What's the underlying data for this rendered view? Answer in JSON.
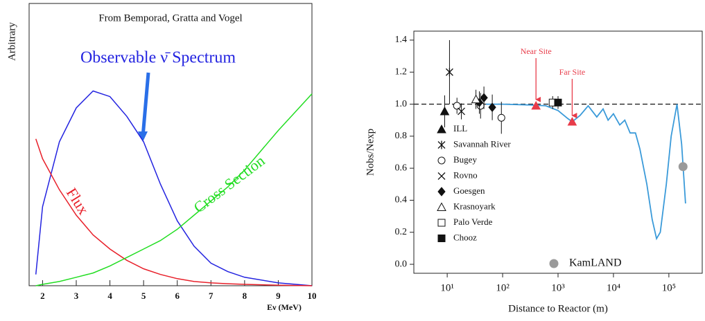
{
  "chart_data": [
    {
      "type": "line",
      "title": "From Bemporad, Gratta and Vogel",
      "xlabel": "Eν (MeV)",
      "ylabel": "Arbitrary",
      "xlim": [
        1.6,
        10
      ],
      "xticks": [
        2,
        3,
        4,
        5,
        6,
        7,
        8,
        9,
        10
      ],
      "ylim": [
        0,
        1
      ],
      "x": [
        1.8,
        2,
        2.5,
        3,
        3.5,
        4,
        4.5,
        5,
        5.5,
        6,
        6.5,
        7,
        7.5,
        8,
        9,
        10
      ],
      "series": [
        {
          "name": "Observable ν̄  Spectrum",
          "color": "#2323e0",
          "values": [
            0.04,
            0.28,
            0.51,
            0.63,
            0.69,
            0.67,
            0.6,
            0.51,
            0.36,
            0.23,
            0.14,
            0.08,
            0.05,
            0.03,
            0.01,
            0
          ]
        },
        {
          "name": "Flux",
          "color": "#e8202a",
          "values": [
            0.52,
            0.45,
            0.34,
            0.25,
            0.18,
            0.13,
            0.09,
            0.06,
            0.04,
            0.025,
            0.015,
            0.01,
            0.007,
            0.005,
            0.002,
            0
          ]
        },
        {
          "name": "Cross Section",
          "color": "#22dd22",
          "values": [
            0,
            0.005,
            0.015,
            0.03,
            0.045,
            0.07,
            0.1,
            0.13,
            0.16,
            0.2,
            0.25,
            0.3,
            0.35,
            0.41,
            0.55,
            0.68
          ]
        }
      ]
    },
    {
      "type": "scatter",
      "xlabel": "Distance to Reactor (m)",
      "ylabel": "Nobs/Nexp",
      "xscale": "log",
      "xlim": [
        2.5,
        400000
      ],
      "xticks": [
        {
          "value": 10,
          "label": "10¹"
        },
        {
          "value": 100,
          "label": "10²"
        },
        {
          "value": 1000,
          "label": "10³"
        },
        {
          "value": 10000,
          "label": "10⁴"
        },
        {
          "value": 100000,
          "label": "10⁵"
        }
      ],
      "ylim": [
        -0.056,
        1.456
      ],
      "yticks": [
        {
          "value": 0,
          "label": "0.0"
        },
        0.2,
        0.4,
        0.6,
        0.8,
        {
          "value": 1,
          "label": "1.0"
        },
        1.2,
        1.4
      ],
      "hline": 1,
      "legend_loc": "lower left",
      "series": [
        {
          "name": "ILL",
          "marker": "triangle-filled",
          "color": "#111111",
          "x": [
            9
          ],
          "y": [
            0.955
          ],
          "err": [
            0.1
          ]
        },
        {
          "name": "Savannah River",
          "marker": "asterisk",
          "color": "#111111",
          "x": [
            11
          ],
          "y": [
            1.2
          ],
          "err": [
            0.2
          ]
        },
        {
          "name": "Bugey",
          "marker": "circle-open",
          "color": "#111111",
          "x": [
            15,
            40,
            95
          ],
          "y": [
            0.99,
            0.99,
            0.915
          ],
          "err": [
            0.05,
            0.08,
            0.1
          ]
        },
        {
          "name": "Rovno",
          "marker": "x",
          "color": "#111111",
          "x": [
            18
          ],
          "y": [
            0.955
          ],
          "err": [
            0.05
          ]
        },
        {
          "name": "Goesgen",
          "marker": "diamond-filled",
          "color": "#111111",
          "x": [
            38,
            46,
            65
          ],
          "y": [
            1.01,
            1.04,
            0.98
          ],
          "err": [
            0.07,
            0.07,
            0.08
          ]
        },
        {
          "name": "Krasnoyark",
          "marker": "triangle-open",
          "color": "#111111",
          "x": [
            33
          ],
          "y": [
            1.03
          ],
          "err": [
            0.06
          ]
        },
        {
          "name": "Palo Verde",
          "marker": "square-open",
          "color": "#111111",
          "x": [
            800
          ],
          "y": [
            1.01
          ],
          "err": [
            0.04
          ]
        },
        {
          "name": "Chooz",
          "marker": "square-filled",
          "color": "#111111",
          "x": [
            1000
          ],
          "y": [
            1.01
          ],
          "err": [
            0.04
          ]
        },
        {
          "name": "KamLAND",
          "marker": "circle-filled",
          "color": "#9a9a9a",
          "x": [
            180000
          ],
          "y": [
            0.61
          ]
        }
      ],
      "curve": {
        "color": "#3a9ad9",
        "x": [
          50,
          100,
          300,
          600,
          1000,
          1500,
          1800,
          2500,
          3500,
          5000,
          6500,
          8000,
          10000,
          13000,
          16000,
          20000,
          25000,
          30000,
          40000,
          50000,
          60000,
          70000,
          90000,
          110000,
          140000,
          170000,
          200000
        ],
        "y": [
          1,
          1,
          0.995,
          0.99,
          0.96,
          0.91,
          0.89,
          0.93,
          0.99,
          0.92,
          0.97,
          0.9,
          0.94,
          0.87,
          0.9,
          0.82,
          0.82,
          0.72,
          0.5,
          0.28,
          0.16,
          0.2,
          0.5,
          0.8,
          1,
          0.75,
          0.38
        ]
      },
      "annotations": [
        {
          "text": "Near Site",
          "x": 400,
          "y": 0.99,
          "color": "#e83c4a"
        },
        {
          "text": "Far Site",
          "x": 1800,
          "y": 0.89,
          "color": "#e83c4a"
        }
      ]
    }
  ]
}
